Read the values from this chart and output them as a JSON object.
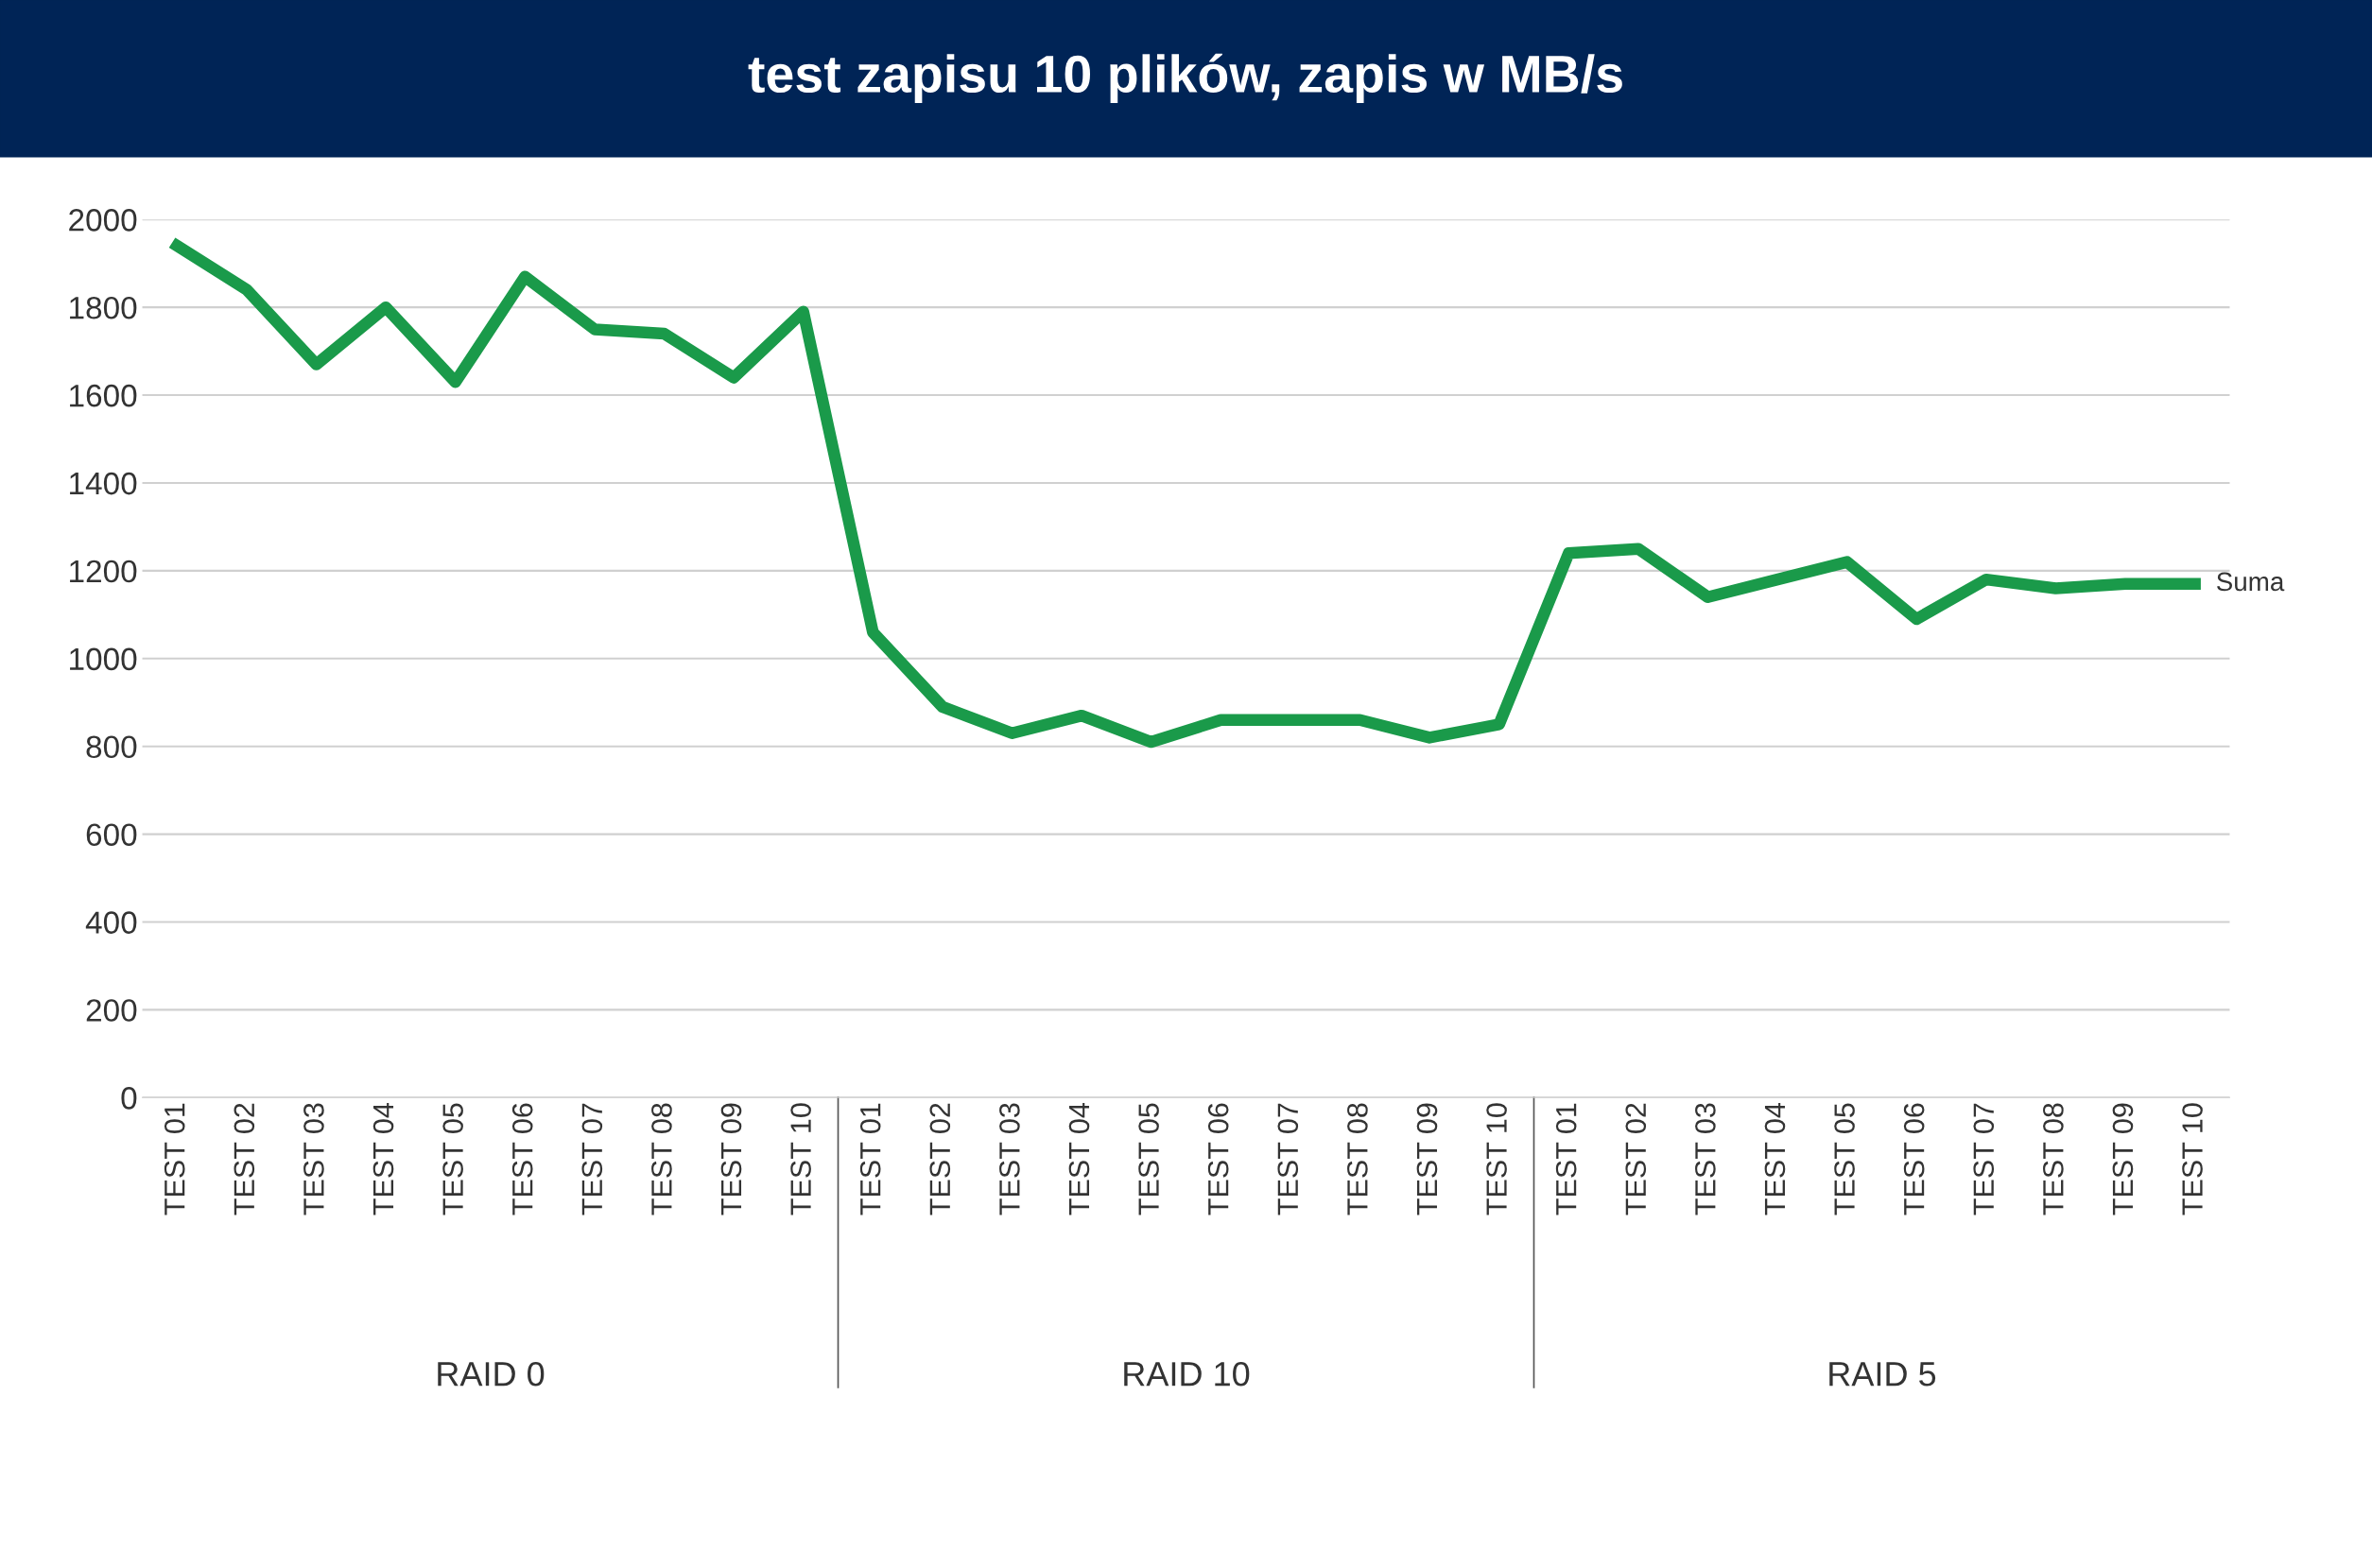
{
  "chart_data": {
    "type": "line",
    "title": "test zapisu 10 plików, zapis w MB/s",
    "categories": [
      "TEST 01",
      "TEST 02",
      "TEST 03",
      "TEST 04",
      "TEST 05",
      "TEST 06",
      "TEST 07",
      "TEST 08",
      "TEST 09",
      "TEST 10",
      "TEST 01",
      "TEST 02",
      "TEST 03",
      "TEST 04",
      "TEST 05",
      "TEST 06",
      "TEST 07",
      "TEST 08",
      "TEST 09",
      "TEST 10",
      "TEST 01",
      "TEST 02",
      "TEST 03",
      "TEST 04",
      "TEST 05",
      "TEST 06",
      "TEST 07",
      "TEST 08",
      "TEST 09",
      "TEST 10"
    ],
    "series": [
      {
        "name": "Suma",
        "color": "#1a9a4a",
        "values": [
          1940,
          1840,
          1670,
          1800,
          1630,
          1870,
          1750,
          1740,
          1640,
          1790,
          1060,
          890,
          830,
          870,
          810,
          860,
          860,
          860,
          820,
          850,
          1240,
          1250,
          1140,
          1180,
          1220,
          1090,
          1180,
          1160,
          1170,
          1170
        ]
      }
    ],
    "ylim": [
      0,
      2000
    ],
    "yticks": [
      0,
      200,
      400,
      600,
      800,
      1000,
      1200,
      1400,
      1600,
      1800,
      2000
    ],
    "grid": "y",
    "line_style": "solid",
    "annotations": [
      "RAID 0",
      "RAID 10",
      "RAID 5"
    ]
  }
}
